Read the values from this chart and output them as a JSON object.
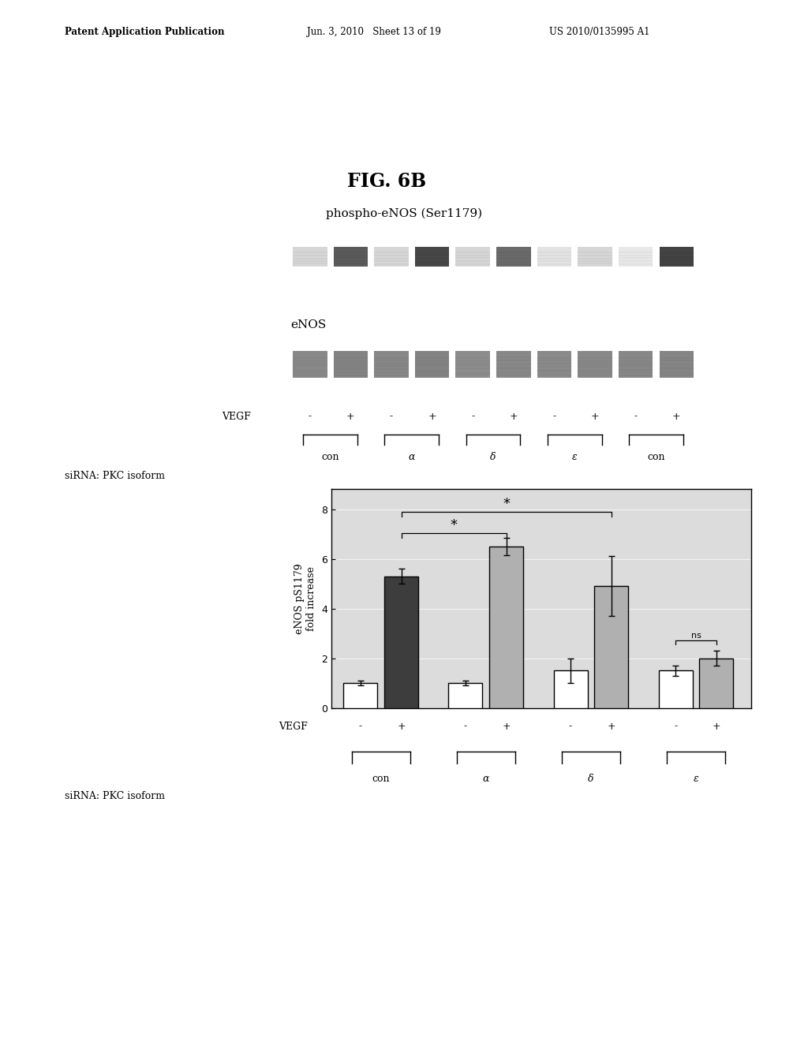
{
  "header_text_left": "Patent Application Publication",
  "header_text_mid": "Jun. 3, 2010   Sheet 13 of 19",
  "header_text_right": "US 2010/0135995 A1",
  "fig_label": "FIG. 6B",
  "blot_title1": "phospho-eNOS (Ser1179)",
  "blot_title2": "eNOS",
  "vegf_label": "VEGF",
  "sirna_label": "siRNA: PKC isoform",
  "vegf_signs_top": [
    "-",
    "+",
    "-",
    "+",
    "-",
    "+",
    "-",
    "+",
    "-",
    "+"
  ],
  "vegf_signs_bottom": [
    "-",
    "+",
    "-",
    "+",
    "-",
    "+",
    "-",
    "+"
  ],
  "group_labels_top": [
    "con",
    "α",
    "δ",
    "ε",
    "con"
  ],
  "group_labels_bottom": [
    "con",
    "α",
    "δ",
    "ε"
  ],
  "bar_values": [
    1.0,
    5.3,
    1.0,
    6.5,
    1.5,
    4.9,
    1.5,
    2.0
  ],
  "bar_errors": [
    0.1,
    0.3,
    0.1,
    0.35,
    0.5,
    1.2,
    0.2,
    0.3
  ],
  "bar_colors": [
    "white",
    "#3d3d3d",
    "white",
    "#b0b0b0",
    "white",
    "#b0b0b0",
    "white",
    "#b0b0b0"
  ],
  "bar_edgecolors": [
    "black",
    "black",
    "black",
    "black",
    "black",
    "black",
    "black",
    "black"
  ],
  "ylabel": "eNOS pS1179\nfold increase",
  "ylim": [
    0,
    8.8
  ],
  "yticks": [
    0,
    2,
    4,
    6,
    8
  ],
  "blot_bg_color": "#dcdcdc",
  "band_positions": [
    0.6,
    1.5,
    2.4,
    3.3,
    4.2,
    5.1,
    6.0,
    6.9,
    7.8,
    8.7
  ],
  "band_intensities1": [
    0.18,
    0.72,
    0.18,
    0.8,
    0.18,
    0.65,
    0.12,
    0.18,
    0.1,
    0.82
  ],
  "band_intensities2": [
    0.62,
    0.65,
    0.63,
    0.65,
    0.6,
    0.62,
    0.61,
    0.62,
    0.63,
    0.64
  ]
}
